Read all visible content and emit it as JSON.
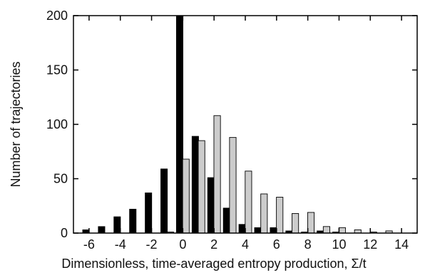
{
  "chart_data": {
    "type": "bar",
    "xlabel": "Dimensionless, time-averaged entropy production, Σ/t",
    "ylabel": "Number of trajectories",
    "xlim": [
      -7,
      15
    ],
    "ylim": [
      0,
      200
    ],
    "xticks": [
      -6,
      -4,
      -2,
      0,
      2,
      4,
      6,
      8,
      10,
      12,
      14
    ],
    "yticks": [
      0,
      50,
      100,
      150,
      200
    ],
    "xtick_labels": [
      "-6",
      "-4",
      "-2",
      "0",
      "2",
      "4",
      "6",
      "8",
      "10",
      "12",
      "14"
    ],
    "ytick_labels": [
      "0",
      "50",
      "100",
      "150",
      "200"
    ],
    "grid": false,
    "series": [
      {
        "color": "#000000",
        "x": [
          -6.2,
          -5.2,
          -4.2,
          -3.2,
          -2.2,
          -1.2,
          -0.2,
          0.8,
          1.8,
          2.8,
          3.8,
          4.8,
          5.8,
          6.8,
          7.8,
          8.8,
          9.8
        ],
        "values": [
          3,
          6,
          15,
          22,
          37,
          59,
          200,
          89,
          51,
          23,
          8,
          5,
          5,
          2,
          1,
          2,
          1
        ]
      },
      {
        "color": "#cccccc",
        "x": [
          -5.8,
          -4.8,
          -3.8,
          -2.8,
          -1.8,
          -0.8,
          0.2,
          1.2,
          2.2,
          3.2,
          4.2,
          5.2,
          6.2,
          7.2,
          8.2,
          9.2,
          10.2,
          11.2,
          12.2,
          13.2
        ],
        "values": [
          0,
          0,
          0,
          0,
          0,
          1,
          68,
          85,
          108,
          88,
          57,
          36,
          33,
          18,
          19,
          6,
          5,
          3,
          1,
          2
        ]
      }
    ]
  }
}
